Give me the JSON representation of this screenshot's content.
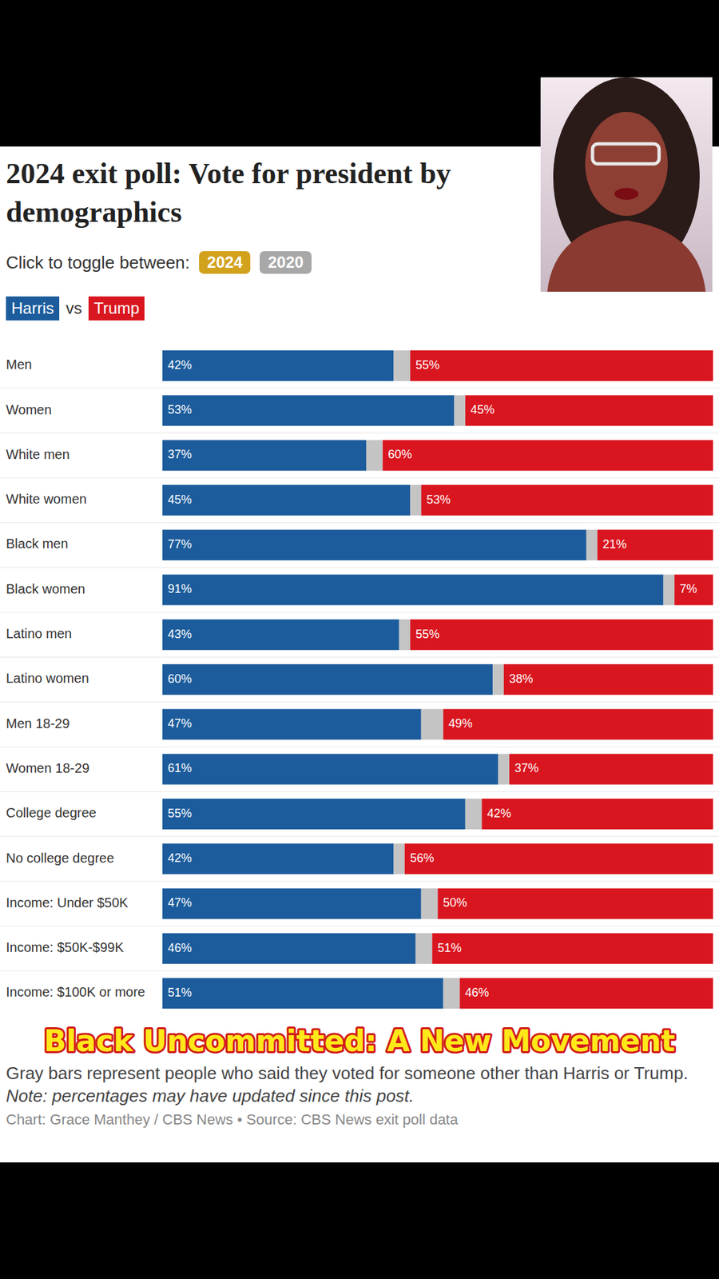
{
  "chart_data": {
    "type": "bar",
    "orientation": "horizontal",
    "stacked": true,
    "data_labels": true,
    "tick_labels": "y",
    "legend": "top-left",
    "title": "2024 exit poll: Vote for president by demographics",
    "categories": [
      "Men",
      "Women",
      "White men",
      "White women",
      "Black men",
      "Black women",
      "Latino men",
      "Latino women",
      "Men 18-29",
      "Women 18-29",
      "College degree",
      "No college degree",
      "Income: Under $50K",
      "Income: $50K-$99K",
      "Income: $100K or more"
    ],
    "xlim": [
      0,
      100
    ],
    "series": [
      {
        "name": "Harris",
        "color": "#1c5c9c",
        "values": [
          42,
          53,
          37,
          45,
          77,
          91,
          43,
          60,
          47,
          61,
          55,
          42,
          47,
          46,
          51
        ],
        "value_labels": [
          "42%",
          "53%",
          "37%",
          "45%",
          "77%",
          "91%",
          "43%",
          "60%",
          "47%",
          "61%",
          "55%",
          "42%",
          "47%",
          "46%",
          "51%"
        ]
      },
      {
        "color": "#c4c4c4",
        "values": [
          3,
          2,
          3,
          2,
          2,
          2,
          2,
          2,
          4,
          2,
          3,
          2,
          3,
          3,
          3
        ]
      },
      {
        "name": "Trump",
        "color": "#d9161f",
        "values": [
          55,
          45,
          60,
          53,
          21,
          7,
          55,
          38,
          49,
          37,
          42,
          56,
          50,
          51,
          46
        ],
        "value_labels": [
          "55%",
          "45%",
          "60%",
          "53%",
          "21%",
          "7%",
          "55%",
          "38%",
          "49%",
          "37%",
          "42%",
          "56%",
          "50%",
          "51%",
          "46%"
        ]
      }
    ]
  },
  "header": {
    "toggle_label": "Click to toggle between:",
    "toggle_options": [
      "2024",
      "2020"
    ],
    "legend_joiner": "vs"
  },
  "footer": {
    "notes": [
      "Gray bars represent people who said they voted for someone other than Harris or Trump.",
      "Note: percentages may have updated since this post."
    ],
    "credit": "Chart: Grace Manthey / CBS News • Source: CBS News exit poll data"
  },
  "overlay": {
    "caption": "Black Uncommitted: A New Movement"
  }
}
